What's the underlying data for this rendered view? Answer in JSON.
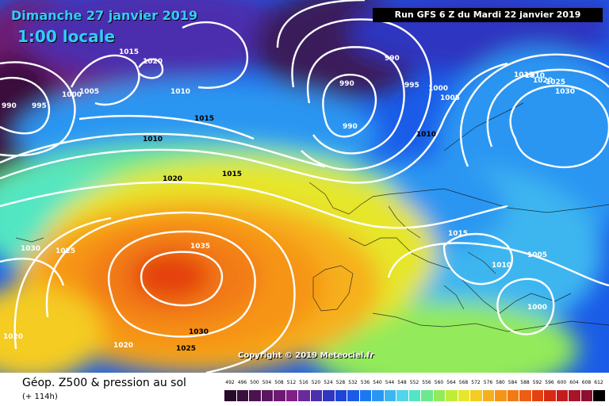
{
  "header": {
    "date_title": "Dimanche 27 janvier 2019",
    "local_time": "1:00 locale",
    "run_info": "Run GFS 6 Z du Mardi 22 janvier 2019"
  },
  "copyright": "Copyright © 2019 Meteociel.fr",
  "footer": {
    "product_title": "Géop. Z500 & pression au sol",
    "lead_time": "(+ 114h)"
  },
  "legend": {
    "values": [
      "492",
      "496",
      "500",
      "504",
      "508",
      "512",
      "516",
      "520",
      "524",
      "528",
      "532",
      "536",
      "540",
      "544",
      "548",
      "552",
      "556",
      "560",
      "564",
      "568",
      "572",
      "576",
      "580",
      "584",
      "588",
      "592",
      "596",
      "600",
      "604",
      "608",
      "612"
    ],
    "colors": [
      "#2a0a2a",
      "#3a0e3e",
      "#4b124f",
      "#5c1660",
      "#6d1a72",
      "#801f86",
      "#6b2a9c",
      "#4b2fae",
      "#2f36c0",
      "#1e44d8",
      "#1a5ce8",
      "#1c78f0",
      "#2a96f2",
      "#3cb6f0",
      "#4fd6ea",
      "#52e6c2",
      "#6ce88e",
      "#93ea5a",
      "#c0ec38",
      "#e6e62a",
      "#f4cc22",
      "#f6b01c",
      "#f69418",
      "#f27a14",
      "#ec5e12",
      "#e44010",
      "#d82a12",
      "#c41c1c",
      "#a81428",
      "#8c0e30",
      "#000000"
    ]
  },
  "map": {
    "isobar_labels": [
      {
        "text": "1015",
        "cls": "w"
      },
      {
        "text": "1020",
        "cls": "w"
      },
      {
        "text": "1010",
        "cls": "w"
      },
      {
        "text": "1005",
        "cls": "w"
      },
      {
        "text": "1000",
        "cls": "w"
      },
      {
        "text": "990",
        "cls": "w"
      },
      {
        "text": "995",
        "cls": "w"
      },
      {
        "text": "1010",
        "cls": "d"
      },
      {
        "text": "1015",
        "cls": "d"
      },
      {
        "text": "1010",
        "cls": "d"
      },
      {
        "text": "1020",
        "cls": "d"
      },
      {
        "text": "1015",
        "cls": "d"
      },
      {
        "text": "990",
        "cls": "w"
      },
      {
        "text": "990",
        "cls": "w"
      },
      {
        "text": "990",
        "cls": "w"
      },
      {
        "text": "995",
        "cls": "w"
      },
      {
        "text": "1000",
        "cls": "w"
      },
      {
        "text": "1005",
        "cls": "w"
      },
      {
        "text": "1010",
        "cls": "w"
      },
      {
        "text": "1015",
        "cls": "w"
      },
      {
        "text": "1020",
        "cls": "w"
      },
      {
        "text": "1025",
        "cls": "w"
      },
      {
        "text": "1030",
        "cls": "w"
      },
      {
        "text": "1030",
        "cls": "w"
      },
      {
        "text": "1025",
        "cls": "w"
      },
      {
        "text": "1035",
        "cls": "w"
      },
      {
        "text": "1030",
        "cls": "d"
      },
      {
        "text": "1020",
        "cls": "w"
      },
      {
        "text": "1020",
        "cls": "w"
      },
      {
        "text": "1025",
        "cls": "d"
      },
      {
        "text": "1015",
        "cls": "w"
      },
      {
        "text": "1010",
        "cls": "w"
      },
      {
        "text": "1005",
        "cls": "w"
      },
      {
        "text": "1000",
        "cls": "w"
      }
    ]
  }
}
